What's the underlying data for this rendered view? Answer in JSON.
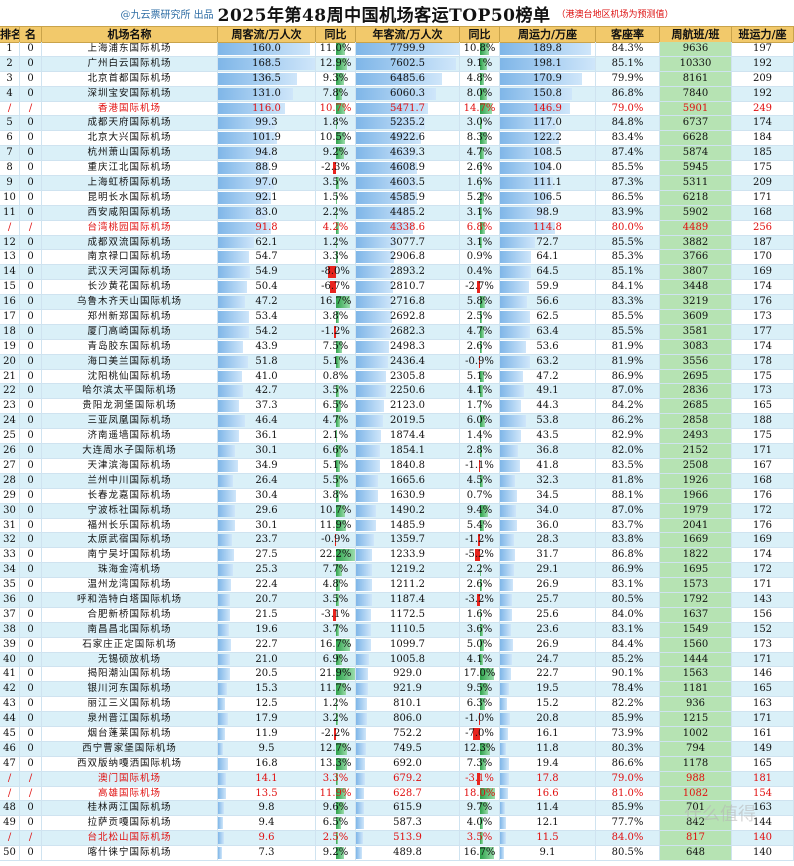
{
  "title": {
    "credit": "@九云票研究所 出品",
    "main": "2025年第48周中国机场客运TOP50榜单",
    "note": "（港澳台地区机场为预测值）"
  },
  "headers": [
    "排名",
    "名",
    "机场名称",
    "周客流/万人次",
    "同比",
    "年客流/万人次",
    "同比",
    "周运力/万座",
    "客座率",
    "周航班/班",
    "班运力/座"
  ],
  "colors": {
    "header_bg": "#f2c96b",
    "row_alt": "#daf0f8",
    "highlight": "#e01010",
    "bar_pax": "#7fb6e8",
    "bar_pos": "#2ca24a",
    "bar_neg": "#e8241e",
    "flight_bg": "#b6e3b3"
  },
  "max_week_pax": 168.5,
  "max_year_pax": 7799.9,
  "max_capacity": 198.1,
  "max_yoy_abs": 22.2,
  "rows": [
    {
      "rank": "1",
      "chg": "0",
      "name": "上海浦东国际机场",
      "week_pax": "160.0",
      "yoy": "11.0%",
      "year_pax": "7799.9",
      "year_yoy": "10.8%",
      "capacity": "189.8",
      "lf": "84.3%",
      "flights": "9636",
      "avg": "197"
    },
    {
      "rank": "2",
      "chg": "0",
      "name": "广州白云国际机场",
      "week_pax": "168.5",
      "yoy": "12.9%",
      "year_pax": "7602.5",
      "year_yoy": "9.1%",
      "capacity": "198.1",
      "lf": "85.1%",
      "flights": "10330",
      "avg": "192"
    },
    {
      "rank": "3",
      "chg": "0",
      "name": "北京首都国际机场",
      "week_pax": "136.5",
      "yoy": "9.3%",
      "year_pax": "6485.6",
      "year_yoy": "4.8%",
      "capacity": "170.9",
      "lf": "79.9%",
      "flights": "8161",
      "avg": "209"
    },
    {
      "rank": "4",
      "chg": "0",
      "name": "深圳宝安国际机场",
      "week_pax": "131.0",
      "yoy": "7.8%",
      "year_pax": "6060.3",
      "year_yoy": "8.0%",
      "capacity": "150.8",
      "lf": "86.8%",
      "flights": "7840",
      "avg": "192"
    },
    {
      "rank": "/",
      "chg": "/",
      "name": "香港国际机场",
      "week_pax": "116.0",
      "yoy": "10.7%",
      "year_pax": "5471.7",
      "year_yoy": "14.7%",
      "capacity": "146.9",
      "lf": "79.0%",
      "flights": "5901",
      "avg": "249",
      "red": true
    },
    {
      "rank": "5",
      "chg": "0",
      "name": "成都天府国际机场",
      "week_pax": "99.3",
      "yoy": "1.8%",
      "year_pax": "5235.2",
      "year_yoy": "3.0%",
      "capacity": "117.0",
      "lf": "84.8%",
      "flights": "6737",
      "avg": "174"
    },
    {
      "rank": "6",
      "chg": "0",
      "name": "北京大兴国际机场",
      "week_pax": "101.9",
      "yoy": "10.5%",
      "year_pax": "4922.6",
      "year_yoy": "8.3%",
      "capacity": "122.2",
      "lf": "83.4%",
      "flights": "6628",
      "avg": "184"
    },
    {
      "rank": "7",
      "chg": "0",
      "name": "杭州萧山国际机场",
      "week_pax": "94.8",
      "yoy": "9.2%",
      "year_pax": "4639.3",
      "year_yoy": "4.7%",
      "capacity": "108.5",
      "lf": "87.4%",
      "flights": "5874",
      "avg": "185"
    },
    {
      "rank": "8",
      "chg": "0",
      "name": "重庆江北国际机场",
      "week_pax": "88.9",
      "yoy": "-2.3%",
      "year_pax": "4608.9",
      "year_yoy": "2.6%",
      "capacity": "104.0",
      "lf": "85.5%",
      "flights": "5945",
      "avg": "175"
    },
    {
      "rank": "9",
      "chg": "0",
      "name": "上海虹桥国际机场",
      "week_pax": "97.0",
      "yoy": "3.5%",
      "year_pax": "4603.5",
      "year_yoy": "1.6%",
      "capacity": "111.1",
      "lf": "87.3%",
      "flights": "5311",
      "avg": "209"
    },
    {
      "rank": "10",
      "chg": "0",
      "name": "昆明长水国际机场",
      "week_pax": "92.1",
      "yoy": "1.5%",
      "year_pax": "4585.9",
      "year_yoy": "5.2%",
      "capacity": "106.5",
      "lf": "86.5%",
      "flights": "6218",
      "avg": "171"
    },
    {
      "rank": "11",
      "chg": "0",
      "name": "西安咸阳国际机场",
      "week_pax": "83.0",
      "yoy": "2.2%",
      "year_pax": "4485.2",
      "year_yoy": "3.1%",
      "capacity": "98.9",
      "lf": "83.9%",
      "flights": "5902",
      "avg": "168"
    },
    {
      "rank": "/",
      "chg": "/",
      "name": "台湾桃园国际机场",
      "week_pax": "91.8",
      "yoy": "4.2%",
      "year_pax": "4338.6",
      "year_yoy": "6.8%",
      "capacity": "114.8",
      "lf": "80.0%",
      "flights": "4489",
      "avg": "256",
      "red": true
    },
    {
      "rank": "12",
      "chg": "0",
      "name": "成都双流国际机场",
      "week_pax": "62.1",
      "yoy": "1.2%",
      "year_pax": "3077.7",
      "year_yoy": "3.1%",
      "capacity": "72.7",
      "lf": "85.5%",
      "flights": "3882",
      "avg": "187"
    },
    {
      "rank": "13",
      "chg": "0",
      "name": "南京禄口国际机场",
      "week_pax": "54.7",
      "yoy": "3.3%",
      "year_pax": "2906.8",
      "year_yoy": "0.9%",
      "capacity": "64.1",
      "lf": "85.3%",
      "flights": "3766",
      "avg": "170"
    },
    {
      "rank": "14",
      "chg": "0",
      "name": "武汉天河国际机场",
      "week_pax": "54.9",
      "yoy": "-8.0%",
      "year_pax": "2893.2",
      "year_yoy": "0.4%",
      "capacity": "64.5",
      "lf": "85.1%",
      "flights": "3807",
      "avg": "169"
    },
    {
      "rank": "15",
      "chg": "0",
      "name": "长沙黄花国际机场",
      "week_pax": "50.4",
      "yoy": "-6.7%",
      "year_pax": "2810.7",
      "year_yoy": "-2.7%",
      "capacity": "59.9",
      "lf": "84.1%",
      "flights": "3448",
      "avg": "174"
    },
    {
      "rank": "16",
      "chg": "0",
      "name": "乌鲁木齐天山国际机场",
      "week_pax": "47.2",
      "yoy": "16.7%",
      "year_pax": "2716.8",
      "year_yoy": "5.8%",
      "capacity": "56.6",
      "lf": "83.3%",
      "flights": "3219",
      "avg": "176"
    },
    {
      "rank": "17",
      "chg": "0",
      "name": "郑州新郑国际机场",
      "week_pax": "53.4",
      "yoy": "3.8%",
      "year_pax": "2692.8",
      "year_yoy": "2.5%",
      "capacity": "62.5",
      "lf": "85.5%",
      "flights": "3609",
      "avg": "173"
    },
    {
      "rank": "18",
      "chg": "0",
      "name": "厦门高崎国际机场",
      "week_pax": "54.2",
      "yoy": "-1.2%",
      "year_pax": "2682.3",
      "year_yoy": "4.7%",
      "capacity": "63.4",
      "lf": "85.5%",
      "flights": "3581",
      "avg": "177"
    },
    {
      "rank": "19",
      "chg": "0",
      "name": "青岛胶东国际机场",
      "week_pax": "43.9",
      "yoy": "7.5%",
      "year_pax": "2498.3",
      "year_yoy": "2.6%",
      "capacity": "53.6",
      "lf": "81.9%",
      "flights": "3083",
      "avg": "174"
    },
    {
      "rank": "20",
      "chg": "0",
      "name": "海口美兰国际机场",
      "week_pax": "51.8",
      "yoy": "5.1%",
      "year_pax": "2436.4",
      "year_yoy": "-0.9%",
      "capacity": "63.2",
      "lf": "81.9%",
      "flights": "3556",
      "avg": "178"
    },
    {
      "rank": "21",
      "chg": "0",
      "name": "沈阳桃仙国际机场",
      "week_pax": "41.0",
      "yoy": "0.8%",
      "year_pax": "2305.8",
      "year_yoy": "5.1%",
      "capacity": "47.2",
      "lf": "86.9%",
      "flights": "2695",
      "avg": "175"
    },
    {
      "rank": "22",
      "chg": "0",
      "name": "哈尔滨太平国际机场",
      "week_pax": "42.7",
      "yoy": "3.5%",
      "year_pax": "2250.6",
      "year_yoy": "4.1%",
      "capacity": "49.1",
      "lf": "87.0%",
      "flights": "2836",
      "avg": "173"
    },
    {
      "rank": "23",
      "chg": "0",
      "name": "贵阳龙洞堡国际机场",
      "week_pax": "37.3",
      "yoy": "6.5%",
      "year_pax": "2123.0",
      "year_yoy": "1.7%",
      "capacity": "44.3",
      "lf": "84.2%",
      "flights": "2685",
      "avg": "165"
    },
    {
      "rank": "24",
      "chg": "0",
      "name": "三亚凤凰国际机场",
      "week_pax": "46.4",
      "yoy": "4.7%",
      "year_pax": "2019.5",
      "year_yoy": "6.0%",
      "capacity": "53.8",
      "lf": "86.2%",
      "flights": "2858",
      "avg": "188"
    },
    {
      "rank": "25",
      "chg": "0",
      "name": "济南遥墙国际机场",
      "week_pax": "36.1",
      "yoy": "2.1%",
      "year_pax": "1874.4",
      "year_yoy": "1.4%",
      "capacity": "43.5",
      "lf": "82.9%",
      "flights": "2493",
      "avg": "175"
    },
    {
      "rank": "26",
      "chg": "0",
      "name": "大连周水子国际机场",
      "week_pax": "30.1",
      "yoy": "6.6%",
      "year_pax": "1854.1",
      "year_yoy": "2.8%",
      "capacity": "36.8",
      "lf": "82.0%",
      "flights": "2152",
      "avg": "171"
    },
    {
      "rank": "27",
      "chg": "0",
      "name": "天津滨海国际机场",
      "week_pax": "34.9",
      "yoy": "5.1%",
      "year_pax": "1840.8",
      "year_yoy": "-1.1%",
      "capacity": "41.8",
      "lf": "83.5%",
      "flights": "2508",
      "avg": "167"
    },
    {
      "rank": "28",
      "chg": "0",
      "name": "兰州中川国际机场",
      "week_pax": "26.4",
      "yoy": "5.5%",
      "year_pax": "1665.6",
      "year_yoy": "4.5%",
      "capacity": "32.3",
      "lf": "81.8%",
      "flights": "1926",
      "avg": "168"
    },
    {
      "rank": "29",
      "chg": "0",
      "name": "长春龙嘉国际机场",
      "week_pax": "30.4",
      "yoy": "3.8%",
      "year_pax": "1630.9",
      "year_yoy": "0.7%",
      "capacity": "34.5",
      "lf": "88.1%",
      "flights": "1966",
      "avg": "176"
    },
    {
      "rank": "30",
      "chg": "0",
      "name": "宁波栎社国际机场",
      "week_pax": "29.6",
      "yoy": "10.7%",
      "year_pax": "1490.2",
      "year_yoy": "9.4%",
      "capacity": "34.0",
      "lf": "87.0%",
      "flights": "1979",
      "avg": "172"
    },
    {
      "rank": "31",
      "chg": "0",
      "name": "福州长乐国际机场",
      "week_pax": "30.1",
      "yoy": "11.9%",
      "year_pax": "1485.9",
      "year_yoy": "5.4%",
      "capacity": "36.0",
      "lf": "83.7%",
      "flights": "2041",
      "avg": "176"
    },
    {
      "rank": "32",
      "chg": "0",
      "name": "太原武宿国际机场",
      "week_pax": "23.7",
      "yoy": "-0.9%",
      "year_pax": "1359.7",
      "year_yoy": "-1.2%",
      "capacity": "28.3",
      "lf": "83.8%",
      "flights": "1669",
      "avg": "169"
    },
    {
      "rank": "33",
      "chg": "0",
      "name": "南宁吴圩国际机场",
      "week_pax": "27.5",
      "yoy": "22.2%",
      "year_pax": "1233.9",
      "year_yoy": "-5.2%",
      "capacity": "31.7",
      "lf": "86.8%",
      "flights": "1822",
      "avg": "174"
    },
    {
      "rank": "34",
      "chg": "0",
      "name": "珠海金湾机场",
      "week_pax": "25.3",
      "yoy": "7.7%",
      "year_pax": "1219.2",
      "year_yoy": "2.2%",
      "capacity": "29.1",
      "lf": "86.9%",
      "flights": "1695",
      "avg": "172"
    },
    {
      "rank": "35",
      "chg": "0",
      "name": "温州龙湾国际机场",
      "week_pax": "22.4",
      "yoy": "4.8%",
      "year_pax": "1211.2",
      "year_yoy": "2.6%",
      "capacity": "26.9",
      "lf": "83.1%",
      "flights": "1573",
      "avg": "171"
    },
    {
      "rank": "36",
      "chg": "0",
      "name": "呼和浩特白塔国际机场",
      "week_pax": "20.7",
      "yoy": "3.5%",
      "year_pax": "1187.4",
      "year_yoy": "-3.2%",
      "capacity": "25.7",
      "lf": "80.5%",
      "flights": "1792",
      "avg": "143"
    },
    {
      "rank": "37",
      "chg": "0",
      "name": "合肥新桥国际机场",
      "week_pax": "21.5",
      "yoy": "-3.1%",
      "year_pax": "1172.5",
      "year_yoy": "1.6%",
      "capacity": "25.6",
      "lf": "84.0%",
      "flights": "1637",
      "avg": "156"
    },
    {
      "rank": "38",
      "chg": "0",
      "name": "南昌昌北国际机场",
      "week_pax": "19.6",
      "yoy": "3.7%",
      "year_pax": "1110.5",
      "year_yoy": "3.6%",
      "capacity": "23.6",
      "lf": "83.1%",
      "flights": "1549",
      "avg": "152"
    },
    {
      "rank": "39",
      "chg": "0",
      "name": "石家庄正定国际机场",
      "week_pax": "22.7",
      "yoy": "16.7%",
      "year_pax": "1099.7",
      "year_yoy": "5.0%",
      "capacity": "26.9",
      "lf": "84.4%",
      "flights": "1560",
      "avg": "173"
    },
    {
      "rank": "40",
      "chg": "0",
      "name": "无锡硕放机场",
      "week_pax": "21.0",
      "yoy": "6.9%",
      "year_pax": "1005.8",
      "year_yoy": "4.1%",
      "capacity": "24.7",
      "lf": "85.2%",
      "flights": "1444",
      "avg": "171"
    },
    {
      "rank": "41",
      "chg": "0",
      "name": "揭阳潮汕国际机场",
      "week_pax": "20.5",
      "yoy": "21.9%",
      "year_pax": "929.0",
      "year_yoy": "17.0%",
      "capacity": "22.7",
      "lf": "90.1%",
      "flights": "1563",
      "avg": "146"
    },
    {
      "rank": "42",
      "chg": "0",
      "name": "银川河东国际机场",
      "week_pax": "15.3",
      "yoy": "11.7%",
      "year_pax": "921.9",
      "year_yoy": "9.5%",
      "capacity": "19.5",
      "lf": "78.4%",
      "flights": "1181",
      "avg": "165"
    },
    {
      "rank": "43",
      "chg": "0",
      "name": "丽江三义国际机场",
      "week_pax": "12.5",
      "yoy": "1.2%",
      "year_pax": "810.1",
      "year_yoy": "6.3%",
      "capacity": "15.2",
      "lf": "82.2%",
      "flights": "936",
      "avg": "163"
    },
    {
      "rank": "44",
      "chg": "0",
      "name": "泉州晋江国际机场",
      "week_pax": "17.9",
      "yoy": "3.2%",
      "year_pax": "806.0",
      "year_yoy": "-1.0%",
      "capacity": "20.8",
      "lf": "85.9%",
      "flights": "1215",
      "avg": "171"
    },
    {
      "rank": "45",
      "chg": "0",
      "name": "烟台蓬莱国际机场",
      "week_pax": "11.9",
      "yoy": "-2.2%",
      "year_pax": "752.2",
      "year_yoy": "-7.0%",
      "capacity": "16.1",
      "lf": "73.9%",
      "flights": "1002",
      "avg": "161"
    },
    {
      "rank": "46",
      "chg": "0",
      "name": "西宁曹家堡国际机场",
      "week_pax": "9.5",
      "yoy": "12.7%",
      "year_pax": "749.5",
      "year_yoy": "12.3%",
      "capacity": "11.8",
      "lf": "80.3%",
      "flights": "794",
      "avg": "149"
    },
    {
      "rank": "47",
      "chg": "0",
      "name": "西双版纳嘎洒国际机场",
      "week_pax": "16.8",
      "yoy": "13.3%",
      "year_pax": "692.0",
      "year_yoy": "7.3%",
      "capacity": "19.4",
      "lf": "86.6%",
      "flights": "1178",
      "avg": "165"
    },
    {
      "rank": "/",
      "chg": "/",
      "name": "澳门国际机场",
      "week_pax": "14.1",
      "yoy": "3.3%",
      "year_pax": "679.2",
      "year_yoy": "-3.1%",
      "capacity": "17.8",
      "lf": "79.0%",
      "flights": "988",
      "avg": "181",
      "red": true
    },
    {
      "rank": "/",
      "chg": "/",
      "name": "高雄国际机场",
      "week_pax": "13.5",
      "yoy": "11.9%",
      "year_pax": "628.7",
      "year_yoy": "18.0%",
      "capacity": "16.6",
      "lf": "81.0%",
      "flights": "1082",
      "avg": "154",
      "red": true
    },
    {
      "rank": "48",
      "chg": "0",
      "name": "桂林两江国际机场",
      "week_pax": "9.8",
      "yoy": "9.6%",
      "year_pax": "615.9",
      "year_yoy": "9.7%",
      "capacity": "11.4",
      "lf": "85.9%",
      "flights": "701",
      "avg": "163"
    },
    {
      "rank": "49",
      "chg": "0",
      "name": "拉萨贡嘎国际机场",
      "week_pax": "9.4",
      "yoy": "6.5%",
      "year_pax": "587.3",
      "year_yoy": "4.0%",
      "capacity": "12.1",
      "lf": "77.7%",
      "flights": "842",
      "avg": "144"
    },
    {
      "rank": "/",
      "chg": "/",
      "name": "台北松山国际机场",
      "week_pax": "9.6",
      "yoy": "2.5%",
      "year_pax": "513.9",
      "year_yoy": "3.5%",
      "capacity": "11.5",
      "lf": "84.0%",
      "flights": "817",
      "avg": "140",
      "red": true
    },
    {
      "rank": "50",
      "chg": "0",
      "name": "喀什徕宁国际机场",
      "week_pax": "7.3",
      "yoy": "9.2%",
      "year_pax": "489.8",
      "year_yoy": "16.7%",
      "capacity": "9.1",
      "lf": "80.5%",
      "flights": "648",
      "avg": "140"
    }
  ],
  "watermark": "什么值得"
}
